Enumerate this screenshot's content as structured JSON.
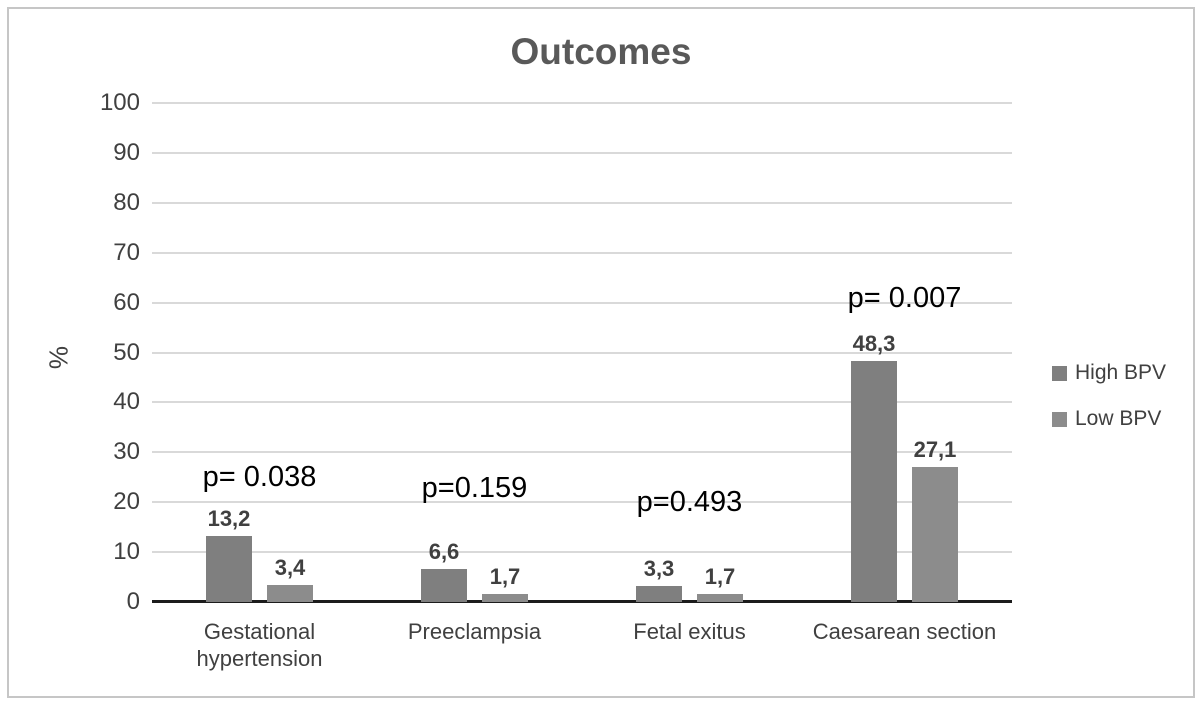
{
  "title": "Outcomes",
  "y_axis": {
    "label": "%",
    "ticks": [
      100,
      90,
      80,
      70,
      60,
      50,
      40,
      30,
      20,
      10,
      0
    ]
  },
  "chart_data": {
    "type": "bar",
    "title": "Outcomes",
    "xlabel": "",
    "ylabel": "%",
    "ylim": [
      0,
      100
    ],
    "grid": true,
    "legend_position": "right",
    "categories": [
      "Gestational hypertension",
      "Preeclampsia",
      "Fetal exitus",
      "Caesarean section"
    ],
    "series": [
      {
        "name": "High BPV",
        "color": "#7f7f7f",
        "values": [
          13.2,
          6.6,
          3.3,
          48.3
        ],
        "labels": [
          "13,2",
          "6,6",
          "3,3",
          "48,3"
        ]
      },
      {
        "name": "Low BPV",
        "color": "#8c8c8c",
        "values": [
          3.4,
          1.7,
          1.7,
          27.1
        ],
        "labels": [
          "3,4",
          "1,7",
          "1,7",
          "27,1"
        ]
      }
    ],
    "annotations": [
      {
        "text": "p= 0.038",
        "group": 0,
        "y_pct": 28.3
      },
      {
        "text": "p=0.159",
        "group": 1,
        "y_pct": 26.1
      },
      {
        "text": "p=0.493",
        "group": 2,
        "y_pct": 23.2
      },
      {
        "text": "p= 0.007",
        "group": 3,
        "y_pct": 64.1
      }
    ]
  },
  "colors": {
    "grid": "#d9d9d9",
    "axis": "#1c1c1c",
    "title": "#595959",
    "tick_text": "#404040",
    "annotation_text": "#000000",
    "figure_border": "#c6c6c6",
    "background": "#ffffff"
  }
}
